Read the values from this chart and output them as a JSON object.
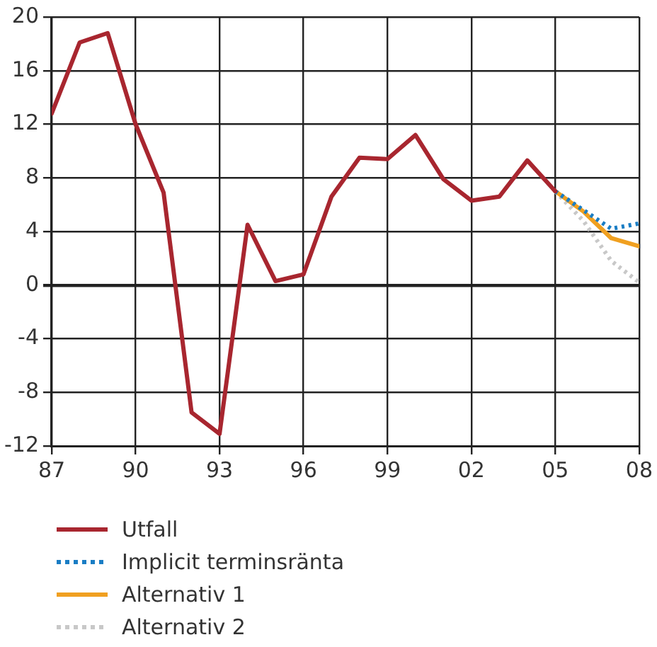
{
  "chart_data": {
    "type": "line",
    "x": [
      1987,
      1988,
      1989,
      1990,
      1991,
      1992,
      1993,
      1994,
      1995,
      1996,
      1997,
      1998,
      1999,
      2000,
      2001,
      2002,
      2003,
      2004,
      2005
    ],
    "series": [
      {
        "name": "Utfall",
        "color": "#a8262f",
        "line_style": "solid",
        "values": [
          12.8,
          18.1,
          18.8,
          12,
          6.9,
          -9.5,
          -11.1,
          4.5,
          0.3,
          0.8,
          6.6,
          9.5,
          9.4,
          11.2,
          7.9,
          6.3,
          6.6,
          9.3,
          7.0
        ]
      },
      {
        "name": "Implicit terminsränta",
        "color": "#1a7dc4",
        "line_style": "dotted",
        "x": [
          2005,
          2006,
          2007,
          2008
        ],
        "values": [
          7.0,
          5.6,
          4.2,
          4.6
        ]
      },
      {
        "name": "Alternativ 1",
        "color": "#f0a020",
        "line_style": "solid",
        "x": [
          2005,
          2006,
          2007,
          2008
        ],
        "values": [
          7.0,
          5.5,
          3.5,
          2.9
        ]
      },
      {
        "name": "Alternativ 2",
        "color": "#c8c8c8",
        "line_style": "dotted",
        "x": [
          2005,
          2006,
          2007,
          2008
        ],
        "values": [
          7.0,
          4.8,
          1.8,
          0.2
        ]
      }
    ],
    "xlim": [
      1987,
      2008
    ],
    "xticks": [
      {
        "value": 1987,
        "label": "87"
      },
      {
        "value": 1990,
        "label": "90"
      },
      {
        "value": 1993,
        "label": "93"
      },
      {
        "value": 1996,
        "label": "96"
      },
      {
        "value": 1999,
        "label": "99"
      },
      {
        "value": 2002,
        "label": "02"
      },
      {
        "value": 2005,
        "label": "05"
      },
      {
        "value": 2008,
        "label": "08"
      }
    ],
    "ylim": [
      -12,
      20
    ],
    "yticks": [
      -12,
      -8,
      -4,
      0,
      4,
      8,
      12,
      16,
      20
    ],
    "grid": true,
    "legend": "bottom",
    "marker": "none"
  }
}
